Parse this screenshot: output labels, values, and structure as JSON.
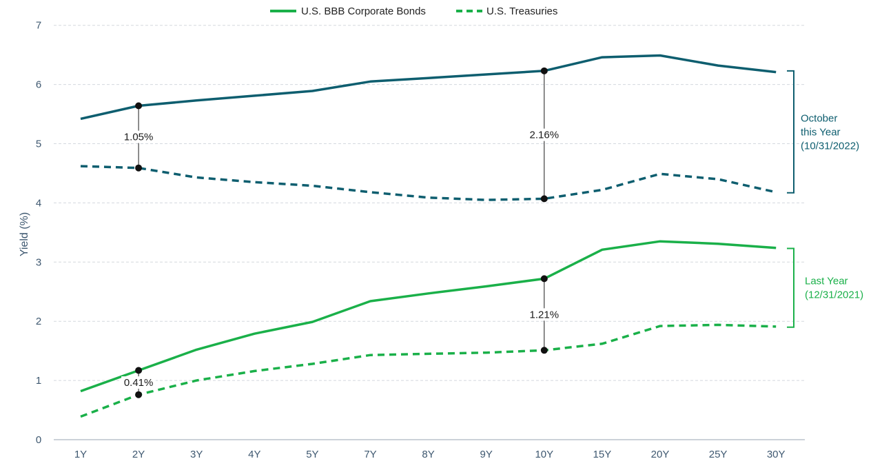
{
  "chart_data": {
    "type": "line",
    "categories": [
      "1Y",
      "2Y",
      "3Y",
      "4Y",
      "5Y",
      "7Y",
      "8Y",
      "9Y",
      "10Y",
      "15Y",
      "20Y",
      "25Y",
      "30Y"
    ],
    "ylabel": "Yield (%)",
    "ylim": [
      0,
      7
    ],
    "yticks": [
      0,
      1,
      2,
      3,
      4,
      5,
      6,
      7
    ],
    "grid": true,
    "legend": {
      "placement": "top-center",
      "items": [
        {
          "label": "U.S. BBB Corporate Bonds",
          "style": "solid"
        },
        {
          "label": "U.S. Treasuries",
          "style": "dashed"
        }
      ]
    },
    "series": [
      {
        "name": "U.S. BBB Corporate Bonds",
        "group": "October this Year (10/31/2022)",
        "style": "solid",
        "color": "#0e5e6f",
        "values": [
          5.42,
          5.64,
          5.73,
          5.81,
          5.89,
          6.05,
          6.11,
          6.17,
          6.23,
          6.46,
          6.49,
          6.32,
          6.21
        ]
      },
      {
        "name": "U.S. Treasuries",
        "group": "October this Year (10/31/2022)",
        "style": "dashed",
        "color": "#0e5e6f",
        "values": [
          4.62,
          4.59,
          4.43,
          4.35,
          4.29,
          4.18,
          4.09,
          4.05,
          4.07,
          4.22,
          4.49,
          4.4,
          4.18
        ]
      },
      {
        "name": "U.S. BBB Corporate Bonds",
        "group": "Last Year (12/31/2021)",
        "style": "solid",
        "color": "#1ab049",
        "values": [
          0.82,
          1.17,
          1.52,
          1.79,
          1.99,
          2.34,
          2.47,
          2.59,
          2.72,
          3.21,
          3.35,
          3.31,
          3.24
        ]
      },
      {
        "name": "U.S. Treasuries",
        "group": "Last Year (12/31/2021)",
        "style": "dashed",
        "color": "#1ab049",
        "values": [
          0.39,
          0.76,
          1.0,
          1.16,
          1.28,
          1.43,
          1.45,
          1.47,
          1.51,
          1.62,
          1.92,
          1.94,
          1.91
        ]
      }
    ],
    "spreads": [
      {
        "category": "2Y",
        "top": 5.64,
        "bottom": 4.59,
        "label": "1.05%"
      },
      {
        "category": "10Y",
        "top": 6.23,
        "bottom": 4.07,
        "label": "2.16%"
      },
      {
        "category": "10Y",
        "top": 2.72,
        "bottom": 1.51,
        "label": "1.21%"
      },
      {
        "category": "2Y",
        "top": 1.17,
        "bottom": 0.76,
        "label": "0.41%"
      }
    ],
    "brackets": [
      {
        "lines": [
          "October",
          "this Year",
          "(10/31/2022)"
        ],
        "range": [
          4.17,
          6.23
        ],
        "color": "#0e5e6f"
      },
      {
        "lines": [
          "Last Year",
          "(12/31/2021)"
        ],
        "range": [
          1.9,
          3.23
        ],
        "color": "#1ab049"
      }
    ]
  }
}
